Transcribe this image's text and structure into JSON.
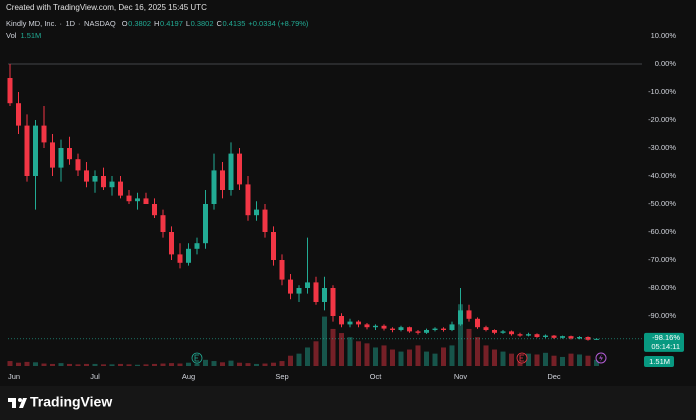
{
  "header": "Created with TradingView.com, Dec 16, 2025 15:45 UTC",
  "footer": "TradingView",
  "chart_data": {
    "type": "candlestick",
    "title": "Kindly MD, Inc.",
    "interval": "1D",
    "exchange": "NASDAQ",
    "legend": [
      {
        "label": "O",
        "value": "0.3802"
      },
      {
        "label": "H",
        "value": "0.4197"
      },
      {
        "label": "L",
        "value": "0.3802"
      },
      {
        "label": "C",
        "value": "0.4135"
      }
    ],
    "change": "+0.0334 (+8.79%)",
    "volume_label": "Vol",
    "volume_value": "1.51M",
    "last_value": -98.16,
    "last_label": "-98.16%",
    "countdown": "05:14:11",
    "up_color": "#22ab94",
    "down_color": "#f23645",
    "categories": [
      "Jun",
      null,
      null,
      null,
      null,
      null,
      null,
      null,
      null,
      null,
      "Jul",
      null,
      null,
      null,
      null,
      null,
      null,
      null,
      null,
      null,
      null,
      "Aug",
      null,
      null,
      null,
      null,
      null,
      null,
      null,
      null,
      null,
      null,
      "Sep",
      null,
      null,
      null,
      null,
      null,
      null,
      null,
      null,
      null,
      null,
      "Oct",
      null,
      null,
      null,
      null,
      null,
      null,
      null,
      null,
      null,
      "Nov",
      null,
      null,
      null,
      null,
      null,
      null,
      null,
      null,
      null,
      null,
      "Dec",
      null,
      null,
      null,
      null,
      null
    ],
    "open": [
      -5,
      -14,
      -22,
      -40,
      -22,
      -28,
      -37,
      -30,
      -34,
      -38,
      -42,
      -40,
      -44,
      -42,
      -47,
      -49,
      -48,
      -50,
      -54,
      -60,
      -68,
      -71,
      -66,
      -64,
      -50,
      -38,
      -45,
      -32,
      -43,
      -54,
      -52,
      -60,
      -70,
      -77,
      -82,
      -80,
      -78,
      -85,
      -80,
      -90,
      -93,
      -92,
      -93,
      -94,
      -93.5,
      -94.5,
      -95,
      -94,
      -95.5,
      -96,
      -95,
      -94.5,
      -95,
      -93,
      -88,
      -91,
      -94,
      -95,
      -96,
      -95.5,
      -96.5,
      -97,
      -96.5,
      -97.5,
      -97,
      -97.8,
      -97.2,
      -98,
      -97.5,
      -98.5
    ],
    "high": [
      0,
      -10,
      -18,
      -20,
      -15,
      -25,
      -27,
      -26,
      -32,
      -35,
      -38,
      -37,
      -40,
      -40,
      -45,
      -46,
      -46,
      -48,
      -52,
      -58,
      -64,
      -64,
      -62,
      -45,
      -32,
      -35,
      -28,
      -30,
      -40,
      -49,
      -50,
      -58,
      -68,
      -75,
      -79,
      -62,
      -76,
      -76,
      -79,
      -89,
      -91,
      -91.5,
      -92.5,
      -93,
      -93,
      -94,
      -93.5,
      -93.8,
      -95,
      -94.5,
      -94,
      -94,
      -92,
      -80,
      -86,
      -90.5,
      -93.5,
      -94.8,
      -95,
      -95.2,
      -96,
      -96,
      -96.2,
      -96.6,
      -96.8,
      -97,
      -97,
      -97.2,
      -97.3,
      -97.9
    ],
    "low": [
      -15,
      -25,
      -42,
      -52,
      -30,
      -40,
      -42,
      -36,
      -40,
      -44,
      -46,
      -45,
      -47,
      -48,
      -50,
      -52,
      -50,
      -55,
      -62,
      -70,
      -73,
      -72,
      -68,
      -66,
      -52,
      -48,
      -47,
      -45,
      -56,
      -56,
      -62,
      -72,
      -79,
      -84,
      -85,
      -82,
      -86,
      -88,
      -92,
      -94,
      -94,
      -94,
      -94.8,
      -95,
      -95.2,
      -95.8,
      -95.5,
      -96,
      -96.6,
      -96.4,
      -95.5,
      -95.6,
      -95.4,
      -93.5,
      -92,
      -94.6,
      -95.5,
      -96.5,
      -96.4,
      -97,
      -97.4,
      -97.3,
      -97.8,
      -97.9,
      -98.2,
      -98.1,
      -98.4,
      -98.3,
      -98.8,
      -98.5
    ],
    "close": [
      -14,
      -22,
      -40,
      -22,
      -28,
      -37,
      -30,
      -34,
      -38,
      -42,
      -40,
      -44,
      -42,
      -47,
      -49,
      -48,
      -50,
      -54,
      -60,
      -68,
      -71,
      -66,
      -64,
      -50,
      -38,
      -45,
      -32,
      -43,
      -54,
      -52,
      -60,
      -70,
      -77,
      -82,
      -80,
      -78,
      -85,
      -80,
      -90,
      -93,
      -92,
      -93,
      -94,
      -93.5,
      -94.5,
      -95,
      -94,
      -95.5,
      -96,
      -95,
      -94.5,
      -95,
      -93,
      -88,
      -91,
      -94,
      -95,
      -96,
      -95.5,
      -96.5,
      -97,
      -96.5,
      -97.5,
      -97,
      -97.8,
      -97.2,
      -98,
      -97.5,
      -98.5,
      -98.16
    ],
    "volume": [
      1.2,
      0.8,
      1,
      0.9,
      0.6,
      0.5,
      0.7,
      0.5,
      0.4,
      0.5,
      0.5,
      0.4,
      0.4,
      0.5,
      0.4,
      0.3,
      0.4,
      0.5,
      0.6,
      0.7,
      0.6,
      0.8,
      0.6,
      1.5,
      1.2,
      0.9,
      1.3,
      0.8,
      0.7,
      0.5,
      0.6,
      0.8,
      1.2,
      2.5,
      3,
      4.5,
      6,
      12,
      9,
      8,
      7,
      6,
      5.5,
      4.5,
      5,
      4,
      3.5,
      4,
      5,
      3.5,
      3,
      4.5,
      5,
      15,
      9,
      7,
      5,
      4,
      3.5,
      3,
      2.5,
      3,
      2.8,
      3.2,
      2.5,
      2.2,
      3,
      2.8,
      2.5,
      1.51
    ],
    "ylim": [
      -107.86,
      16.43
    ],
    "volume_ylim": [
      0,
      17
    ],
    "yticks": [
      {
        "value": 10,
        "label": "10.00%"
      },
      {
        "value": 0,
        "label": "0.00%"
      },
      {
        "value": -10,
        "label": "-10.00%"
      },
      {
        "value": -20,
        "label": "-20.00%"
      },
      {
        "value": -30,
        "label": "-30.00%"
      },
      {
        "value": -40,
        "label": "-40.00%"
      },
      {
        "value": -50,
        "label": "-50.00%"
      },
      {
        "value": -60,
        "label": "-60.00%"
      },
      {
        "value": -70,
        "label": "-70.00%"
      },
      {
        "value": -80,
        "label": "-80.00%"
      },
      {
        "value": -90,
        "label": "-90.00%"
      }
    ],
    "zero_line": true
  }
}
